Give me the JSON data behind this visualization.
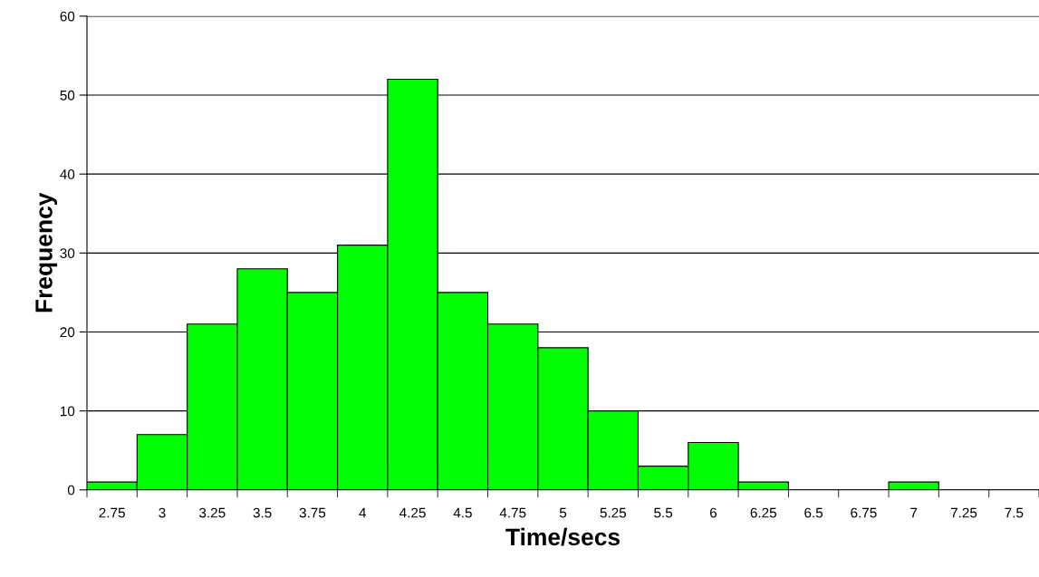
{
  "chart_data": {
    "type": "bar",
    "xlabel": "Time/secs",
    "ylabel": "Frequency",
    "categories": [
      "2.75",
      "3",
      "3.25",
      "3.5",
      "3.75",
      "4",
      "4.25",
      "4.5",
      "4.75",
      "5",
      "5.25",
      "5.5",
      "6",
      "6.25",
      "6.5",
      "6.75",
      "7",
      "7.25",
      "7.5"
    ],
    "values": [
      1,
      7,
      21,
      28,
      25,
      31,
      52,
      25,
      21,
      18,
      10,
      3,
      6,
      1,
      0,
      0,
      1,
      0,
      0
    ],
    "color": "#00ff00",
    "ylim": [
      0,
      60
    ],
    "yticks": [
      0,
      10,
      20,
      30,
      40,
      50,
      60
    ],
    "grid": "y"
  }
}
